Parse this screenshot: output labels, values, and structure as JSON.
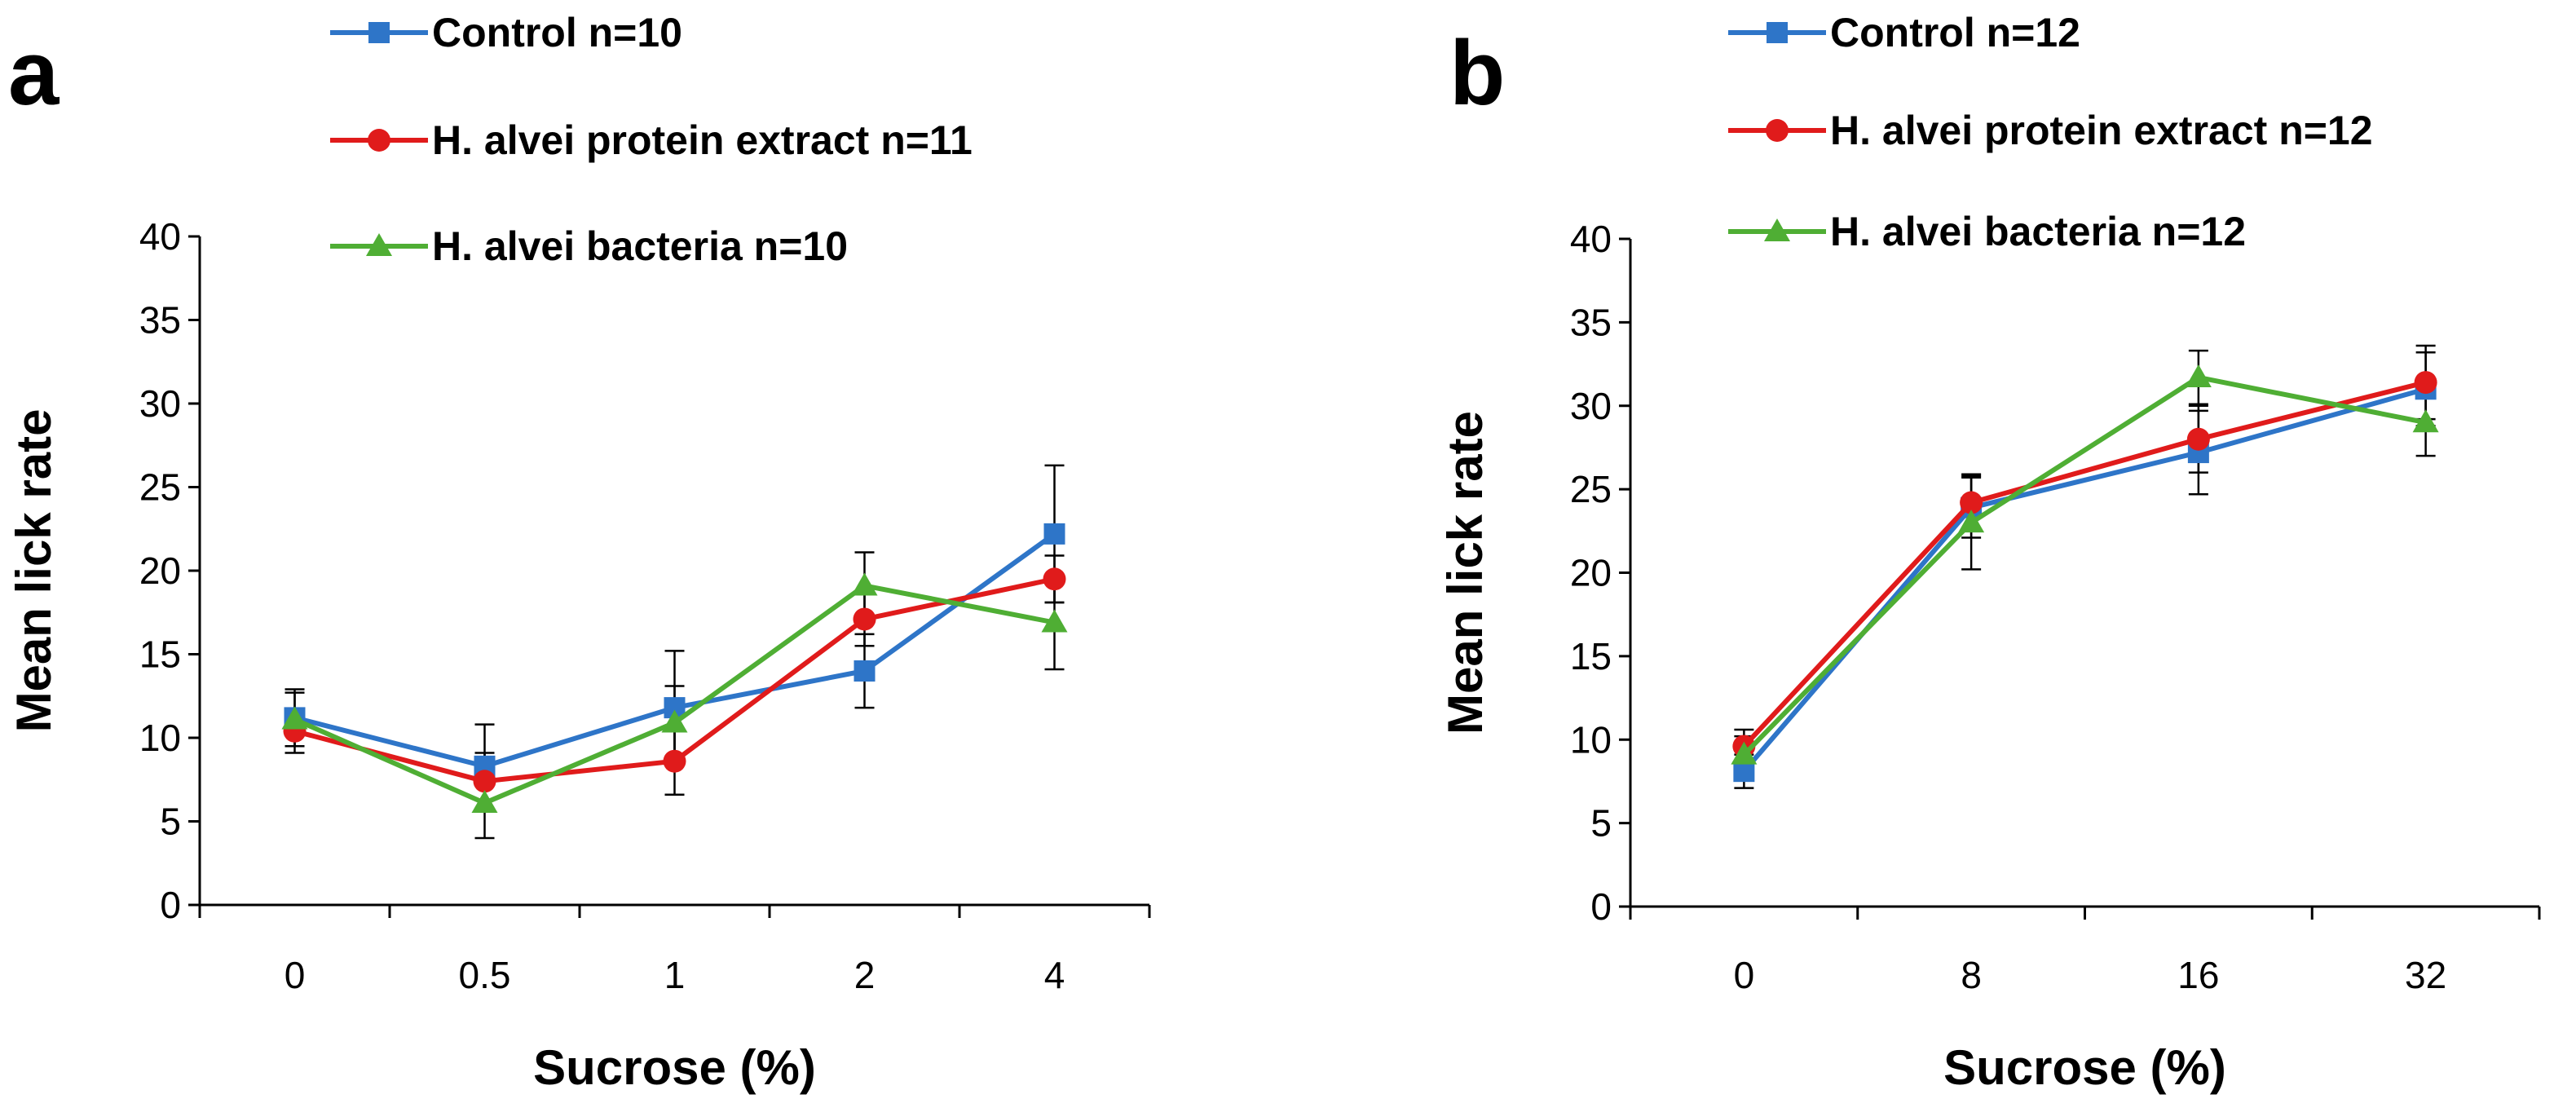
{
  "chart_data": [
    {
      "type": "line",
      "panel_label": "a",
      "title": "",
      "xlabel": "Sucrose (%)",
      "ylabel": "Mean lick rate",
      "categories": [
        "0",
        "0.5",
        "1",
        "2",
        "4"
      ],
      "ylim": [
        0,
        40
      ],
      "yticks": [
        "0",
        "5",
        "10",
        "15",
        "20",
        "25",
        "30",
        "35",
        "40"
      ],
      "grid": false,
      "legend_position": "top",
      "series": [
        {
          "name": "Control n=10",
          "color": "#2e75c8",
          "marker": "square",
          "values": [
            11.2,
            8.3,
            11.8,
            14.0,
            22.2
          ],
          "errors": [
            1.7,
            2.5,
            3.4,
            2.2,
            4.1
          ]
        },
        {
          "name": "H. alvei protein extract n=11",
          "color": "#e01b1b",
          "marker": "circle",
          "values": [
            10.4,
            7.4,
            8.6,
            17.1,
            19.5
          ],
          "errors": [
            1.3,
            1.7,
            2.0,
            1.6,
            1.4
          ]
        },
        {
          "name": "H. alvei bacteria n=10",
          "color": "#4fae34",
          "marker": "triangle",
          "values": [
            11.1,
            6.1,
            10.9,
            19.1,
            16.9
          ],
          "errors": [
            1.6,
            2.1,
            2.2,
            2.0,
            2.8
          ]
        }
      ]
    },
    {
      "type": "line",
      "panel_label": "b",
      "title": "",
      "xlabel": "Sucrose (%)",
      "ylabel": "Mean lick rate",
      "categories": [
        "0",
        "8",
        "16",
        "32"
      ],
      "ylim": [
        0,
        40
      ],
      "yticks": [
        "0",
        "5",
        "10",
        "15",
        "20",
        "25",
        "30",
        "35",
        "40"
      ],
      "grid": false,
      "legend_position": "top",
      "series": [
        {
          "name": "Control n=12",
          "color": "#2e75c8",
          "marker": "square",
          "values": [
            8.1,
            23.9,
            27.2,
            31.0
          ],
          "errors": [
            1.0,
            1.8,
            2.5,
            2.2
          ]
        },
        {
          "name": "H. alvei protein extract n=12",
          "color": "#e01b1b",
          "marker": "circle",
          "values": [
            9.6,
            24.2,
            28.0,
            31.4
          ],
          "errors": [
            1.0,
            1.7,
            2.0,
            2.2
          ]
        },
        {
          "name": "H. alvei bacteria n=12",
          "color": "#4fae34",
          "marker": "triangle",
          "values": [
            9.1,
            23.0,
            31.7,
            29.0
          ],
          "errors": [
            1.1,
            2.8,
            1.6,
            2.0
          ]
        }
      ]
    }
  ]
}
